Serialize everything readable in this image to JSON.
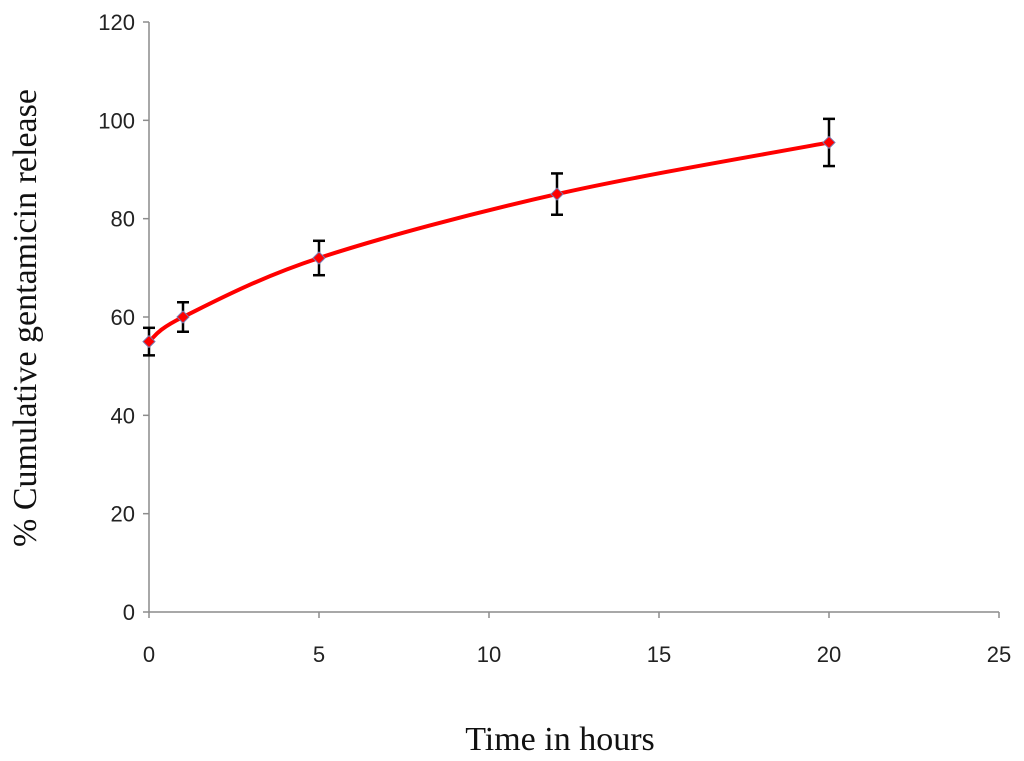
{
  "chart_data": {
    "type": "line",
    "title": "",
    "xlabel": "Time in hours",
    "ylabel": "% Cumulative gentamicin release",
    "xlim": [
      0,
      25
    ],
    "ylim": [
      0,
      120
    ],
    "x_ticks": [
      0,
      5,
      10,
      15,
      20,
      25
    ],
    "y_ticks": [
      0,
      20,
      40,
      60,
      80,
      100,
      120
    ],
    "grid": false,
    "legend": "none",
    "series": [
      {
        "x": [
          0,
          1,
          5,
          12,
          20
        ],
        "y": [
          55,
          60,
          72,
          85,
          95.5
        ],
        "error": [
          2.8,
          3.0,
          3.5,
          4.2,
          4.8
        ],
        "color": "#ff0000",
        "marker": "diamond",
        "smooth": true
      }
    ]
  }
}
